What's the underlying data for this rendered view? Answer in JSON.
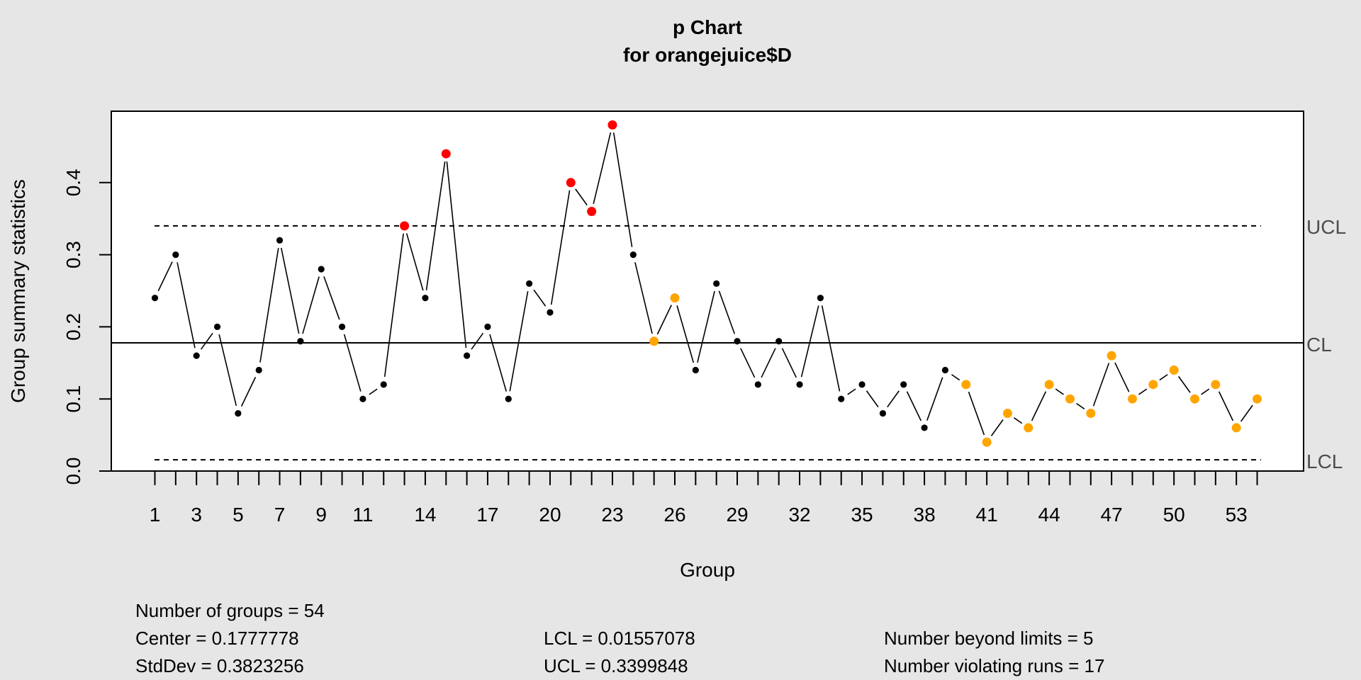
{
  "chart_data": {
    "type": "line",
    "title": "p Chart",
    "subtitle": "for orangejuice$D",
    "xlabel": "Group",
    "ylabel": "Group summary statistics",
    "ylim": [
      0,
      0.5
    ],
    "y_ticks": [
      0.0,
      0.1,
      0.2,
      0.3,
      0.4
    ],
    "y_tick_labels": [
      "0.0",
      "0.1",
      "0.2",
      "0.3",
      "0.4"
    ],
    "x_ticks": [
      1,
      3,
      5,
      7,
      9,
      11,
      14,
      17,
      20,
      23,
      26,
      29,
      32,
      35,
      38,
      41,
      44,
      47,
      50,
      53
    ],
    "x": [
      1,
      2,
      3,
      4,
      5,
      6,
      7,
      8,
      9,
      10,
      11,
      12,
      13,
      14,
      15,
      16,
      17,
      18,
      19,
      20,
      21,
      22,
      23,
      24,
      25,
      26,
      27,
      28,
      29,
      30,
      31,
      32,
      33,
      34,
      35,
      36,
      37,
      38,
      39,
      40,
      41,
      42,
      43,
      44,
      45,
      46,
      47,
      48,
      49,
      50,
      51,
      52,
      53,
      54
    ],
    "values": [
      0.24,
      0.3,
      0.16,
      0.2,
      0.08,
      0.14,
      0.32,
      0.18,
      0.28,
      0.2,
      0.1,
      0.12,
      0.34,
      0.24,
      0.44,
      0.16,
      0.2,
      0.1,
      0.26,
      0.22,
      0.4,
      0.36,
      0.48,
      0.3,
      0.18,
      0.24,
      0.14,
      0.26,
      0.18,
      0.12,
      0.18,
      0.12,
      0.24,
      0.1,
      0.12,
      0.08,
      0.12,
      0.06,
      0.14,
      0.12,
      0.04,
      0.08,
      0.06,
      0.12,
      0.1,
      0.08,
      0.16,
      0.1,
      0.12,
      0.14,
      0.1,
      0.12,
      0.06,
      0.1
    ],
    "beyond_limits": [
      13,
      15,
      21,
      22,
      23
    ],
    "violating_runs": [
      25,
      26,
      40,
      41,
      42,
      43,
      44,
      45,
      46,
      47,
      48,
      49,
      50,
      51,
      52,
      53,
      54
    ],
    "center": 0.1777778,
    "lcl": 0.01557078,
    "ucl": 0.3399848,
    "limit_labels": {
      "ucl": "UCL",
      "cl": "CL",
      "lcl": "LCL"
    },
    "colors": {
      "background": "#e6e6e6",
      "plot_background": "#ffffff",
      "point": "#000000",
      "beyond_limits": "#ff0000",
      "violating_runs": "#ffa500",
      "limit_label": "#4d4d4d"
    },
    "grid": false
  },
  "stats": {
    "groups": "Number of groups = 54",
    "center": "Center = 0.1777778",
    "stddev": "StdDev = 0.3823256",
    "lcl": "LCL = 0.01557078",
    "ucl": "UCL = 0.3399848",
    "beyond": "Number beyond limits = 5",
    "violating": "Number violating runs = 17"
  }
}
